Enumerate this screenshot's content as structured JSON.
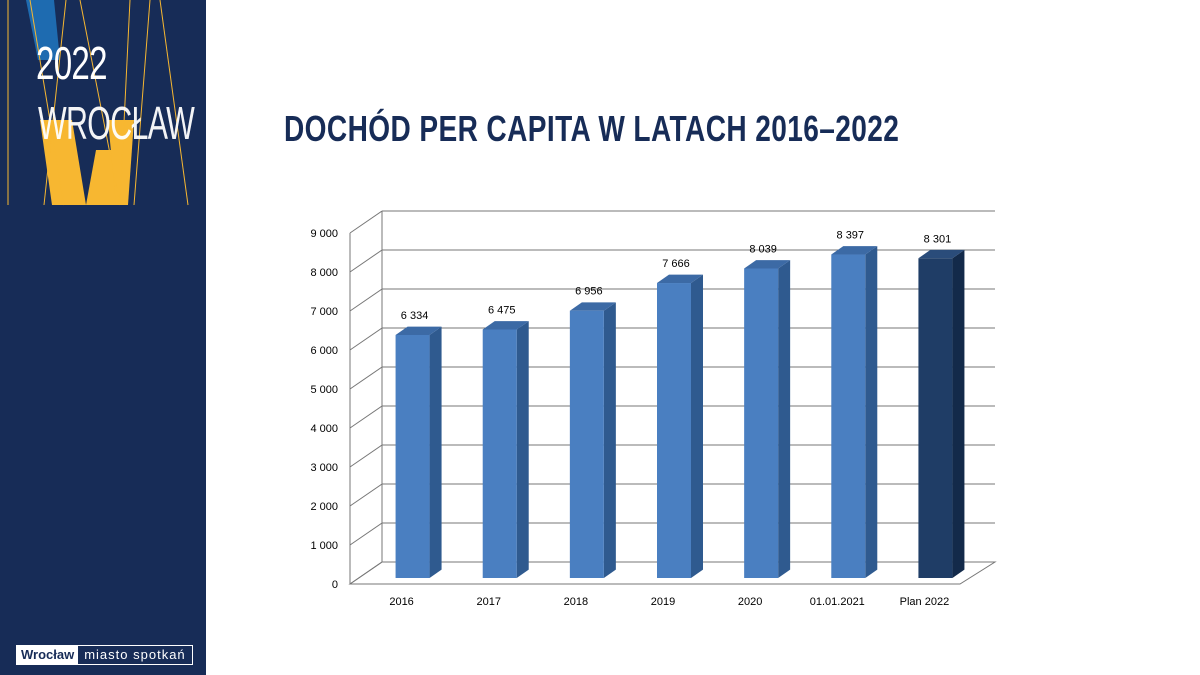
{
  "sidebar": {
    "year": "2022",
    "city": "WROCŁAW",
    "brand_city": "Wrocław",
    "brand_tagline": "miasto spotkań",
    "colors": {
      "background": "#172c57",
      "yellow": "#f7b731",
      "blue": "#1e6bb0"
    }
  },
  "slide": {
    "title": "DOCHÓD PER CAPITA W LATACH 2016–2022"
  },
  "chart_data": {
    "type": "bar",
    "title": "DOCHÓD PER CAPITA W LATACH 2016–2022",
    "xlabel": "",
    "ylabel": "",
    "categories": [
      "2016",
      "2017",
      "2018",
      "2019",
      "2020",
      "01.01.2021",
      "Plan 2022"
    ],
    "values": [
      6334,
      6475,
      6956,
      7666,
      8039,
      8397,
      8301
    ],
    "labels": [
      "6 334",
      "6 475",
      "6 956",
      "7 666",
      "8 039",
      "8 397",
      "8 301"
    ],
    "ylim": [
      0,
      9000
    ],
    "yticks": [
      0,
      1000,
      2000,
      3000,
      4000,
      5000,
      6000,
      7000,
      8000,
      9000
    ],
    "ytick_labels": [
      "0",
      "1 000",
      "2 000",
      "3 000",
      "4 000",
      "5 000",
      "6 000",
      "7 000",
      "8 000",
      "9 000"
    ],
    "grid": true,
    "colors": {
      "bar": "#4a7fc1",
      "bar_highlight": "#1f3d66"
    },
    "highlight_index": 6
  }
}
